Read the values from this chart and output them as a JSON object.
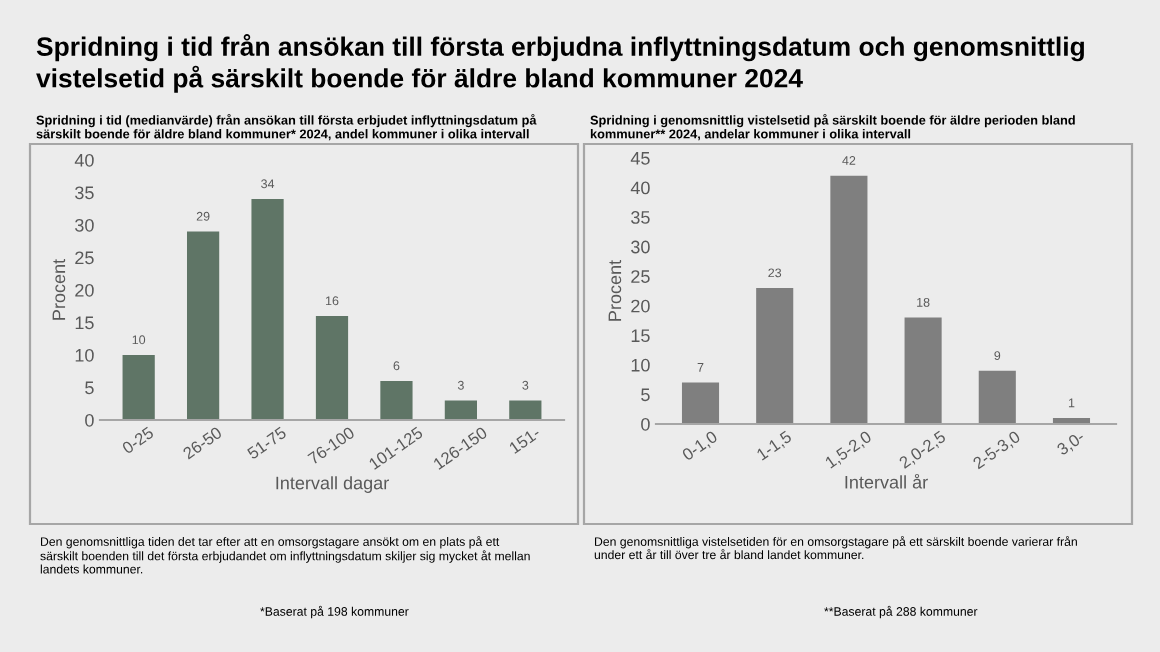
{
  "chart_data": [
    {
      "type": "bar",
      "title": "Spridning i tid (medianvärde) från ansökan till första erbjudet inflyttningsdatum på särskilt boende för äldre bland kommuner* 2024, andel kommuner i olika intervall",
      "xlabel": "Intervall dagar",
      "ylabel": "Procent",
      "categories": [
        "0-25",
        "26-50",
        "51-75",
        "76-100",
        "101-125",
        "126-150",
        "151-"
      ],
      "values": [
        10,
        29,
        34,
        16,
        6,
        3,
        3
      ],
      "color": "#5f7566",
      "data_labels": true,
      "ylim": [
        0,
        40
      ],
      "yticks": [
        0,
        5,
        10,
        15,
        20,
        25,
        30,
        35,
        40
      ],
      "grid": false,
      "annotations": [
        "Spridning i tid från ansökan till första erbjudna inflyttningsdatum och genomsnittlig vistelsetid på särskilt boende för äldre bland kommuner 2024",
        "Den genomsnittliga tiden det tar efter att en omsorgstagare ansökt om en plats på ett särskilt boenden till det första erbjudandet om inflyttningsdatum skiljer sig mycket åt mellan landets kommuner.",
        "*Baserat på 198 kommuner"
      ]
    },
    {
      "type": "bar",
      "title": "Spridning i genomsnittlig vistelsetid på särskilt boende för äldre perioden bland kommuner** 2024, andelar kommuner i olika intervall",
      "xlabel": "Intervall år",
      "ylabel": "Procent",
      "categories": [
        "0-1,0",
        "1-1,5",
        "1,5-2,0",
        "2,0-2,5",
        "2-5-3,0",
        "3,0-"
      ],
      "values": [
        7,
        23,
        42,
        18,
        9,
        1
      ],
      "color": "#7f7f7f",
      "data_labels": true,
      "ylim": [
        0,
        45
      ],
      "yticks": [
        0,
        5,
        10,
        15,
        20,
        25,
        30,
        35,
        40,
        45
      ],
      "grid": false,
      "annotations": [
        "Den genomsnittliga vistelsetiden för en omsorgstagare på ett särskilt boende varierar från under ett år till över tre år bland landet kommuner.",
        "**Baserat på 288 kommuner"
      ]
    }
  ]
}
